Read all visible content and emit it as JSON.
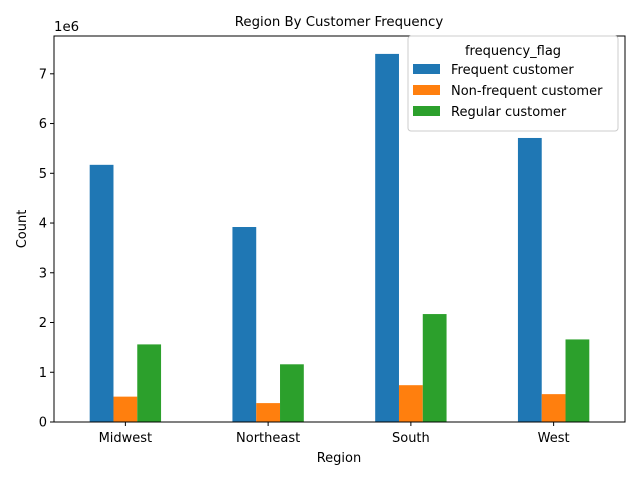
{
  "chart_data": {
    "type": "bar",
    "title": "Region By Customer Frequency",
    "xlabel": "Region",
    "ylabel": "Count",
    "y_offset_text": "1e6",
    "categories": [
      "Midwest",
      "Northeast",
      "South",
      "West"
    ],
    "series": [
      {
        "name": "Frequent customer",
        "color": "#1f77b4",
        "values": [
          5170000,
          3920000,
          7400000,
          5710000
        ]
      },
      {
        "name": "Non-frequent customer",
        "color": "#ff7f0e",
        "values": [
          510000,
          380000,
          740000,
          560000
        ]
      },
      {
        "name": "Regular customer",
        "color": "#2ca02c",
        "values": [
          1560000,
          1160000,
          2170000,
          1660000
        ]
      }
    ],
    "ylim": [
      0,
      7760000
    ],
    "yticks": [
      0,
      1000000,
      2000000,
      3000000,
      4000000,
      5000000,
      6000000,
      7000000
    ],
    "ytick_labels": [
      "0",
      "1",
      "2",
      "3",
      "4",
      "5",
      "6",
      "7"
    ],
    "legend": {
      "title": "frequency_flag",
      "position": "top-right"
    },
    "grid": false
  }
}
